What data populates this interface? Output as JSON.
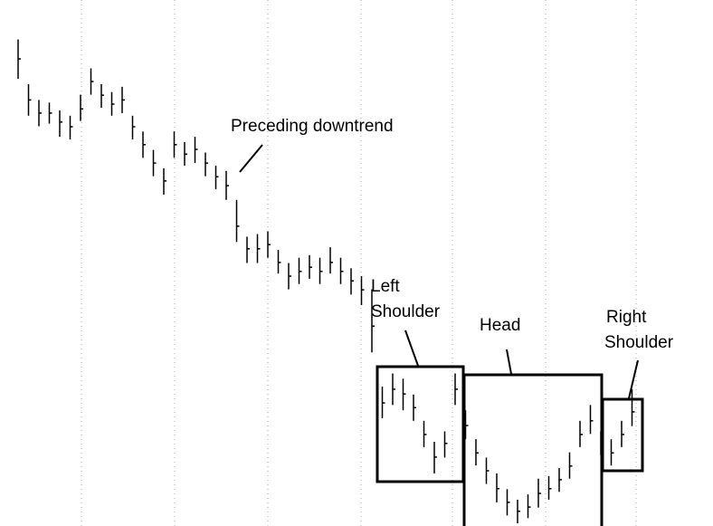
{
  "chart_data": {
    "type": "hilo",
    "annotations": [
      {
        "lines": [
          "Preceding downtrend"
        ]
      },
      {
        "lines": [
          "Left",
          "Shoulder"
        ]
      },
      {
        "lines": [
          "Head"
        ]
      },
      {
        "lines": [
          "Right",
          "Shoulder"
        ]
      }
    ],
    "ylim": [
      0,
      100
    ],
    "color": "#000000",
    "values": [
      88.8,
      81,
      78.5,
      78.5,
      76.8,
      75.9,
      79.3,
      84.5,
      81.9,
      80.2,
      81,
      75.9,
      72.5,
      69,
      65.6,
      72.5,
      70.7,
      71.6,
      69,
      66.4,
      64.7,
      57,
      52.7,
      52.7,
      53.5,
      50.1,
      47.5,
      48.4,
      49.2,
      48.4,
      50.1,
      48.4,
      46.6,
      44.9,
      38,
      23.4,
      26,
      25.1,
      22.5,
      17.4,
      13.1,
      15.7,
      26,
      19.1,
      13.9,
      10.5,
      7.1,
      4.5,
      2.8,
      3.6,
      6.2,
      7.1,
      8.8,
      11.4,
      17.4,
      20,
      15.7,
      13.9,
      17.4,
      21.7
    ],
    "high": [
      92.5,
      84,
      81,
      80.5,
      79,
      78,
      82,
      87,
      84,
      82.5,
      83.5,
      78,
      75,
      71.5,
      68,
      75,
      73,
      74,
      71,
      68.5,
      67.5,
      62,
      55,
      55.5,
      56,
      52.5,
      50,
      51,
      51.5,
      51,
      53,
      51,
      49,
      47.5,
      45,
      26.5,
      29,
      28,
      25,
      20,
      16,
      18,
      29,
      22,
      16.5,
      13,
      10,
      7,
      5,
      6,
      9,
      9.5,
      11,
      14,
      20,
      23,
      18,
      16.5,
      20,
      26
    ],
    "low": [
      85,
      78,
      76,
      76.5,
      74,
      73.5,
      77,
      82,
      79.5,
      78,
      78.5,
      73.5,
      70,
      66.5,
      63,
      70,
      68.5,
      69,
      66.5,
      64,
      62,
      54,
      50,
      50,
      51,
      48,
      45,
      46,
      47,
      46,
      48,
      46,
      44,
      42,
      33,
      20.5,
      23,
      22,
      20,
      15,
      10,
      13,
      23,
      16.5,
      11.5,
      8,
      4.5,
      2,
      0.5,
      1.5,
      3.5,
      5,
      6.5,
      9,
      15,
      17.5,
      13.5,
      11.5,
      15,
      19
    ]
  }
}
